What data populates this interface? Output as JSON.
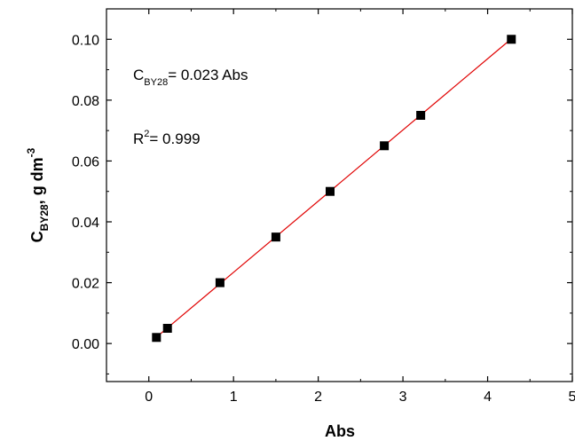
{
  "chart_data": {
    "type": "scatter",
    "x": [
      0.09,
      0.22,
      0.84,
      1.5,
      2.14,
      2.78,
      3.21,
      4.28
    ],
    "y": [
      0.002,
      0.005,
      0.02,
      0.035,
      0.05,
      0.065,
      0.075,
      0.1
    ],
    "fit_line": {
      "slope": 0.0234,
      "intercept": 0.0,
      "x_range": [
        0.09,
        4.28
      ],
      "color": "#e00000"
    },
    "marker_color": "#000000",
    "xlabel": "Abs",
    "ylabel": {
      "base": "C",
      "sub": "BY28",
      "rest": ", g dm",
      "sup": "-3"
    },
    "xlim": [
      -0.5,
      5
    ],
    "ylim": [
      -0.0125,
      0.11
    ],
    "xticks": [
      "0",
      "1",
      "2",
      "3",
      "4",
      "5"
    ],
    "yticks": [
      "0.00",
      "0.02",
      "0.04",
      "0.06",
      "0.08",
      "0.10"
    ],
    "annotations": {
      "equation": {
        "base": "C",
        "sub": "BY28",
        "rest": "= 0.023 Abs"
      },
      "r2": {
        "base": "R",
        "sup": "2",
        "rest": "= 0.999"
      }
    },
    "grid": false,
    "legend": "none"
  }
}
